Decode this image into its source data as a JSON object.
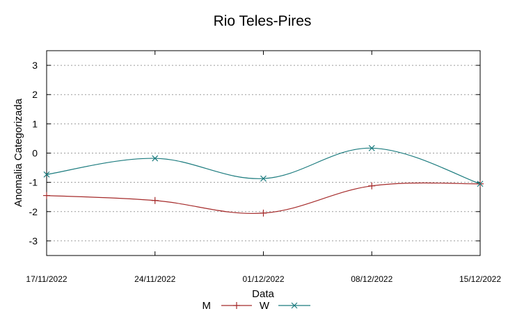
{
  "chart_data": {
    "type": "line",
    "title": "Rio Teles-Pires",
    "xlabel": "Data",
    "ylabel": "Anomalia Categorizada",
    "categories": [
      "17/11/2022",
      "24/11/2022",
      "01/12/2022",
      "08/12/2022",
      "15/12/2022"
    ],
    "yticks": [
      -3,
      -2,
      -1,
      0,
      1,
      2,
      3
    ],
    "ylim": [
      -3.5,
      3.5
    ],
    "grid": "horizontal dotted",
    "legend_position": "bottom",
    "series": [
      {
        "name": "M",
        "values": [
          -1.45,
          -1.62,
          -2.05,
          -1.12,
          -1.05
        ],
        "color": "#a52a2a",
        "marker": "plus"
      },
      {
        "name": "W",
        "values": [
          -0.73,
          -0.18,
          -0.87,
          0.17,
          -1.05
        ],
        "color": "#1b7b7e",
        "marker": "cross"
      }
    ]
  }
}
